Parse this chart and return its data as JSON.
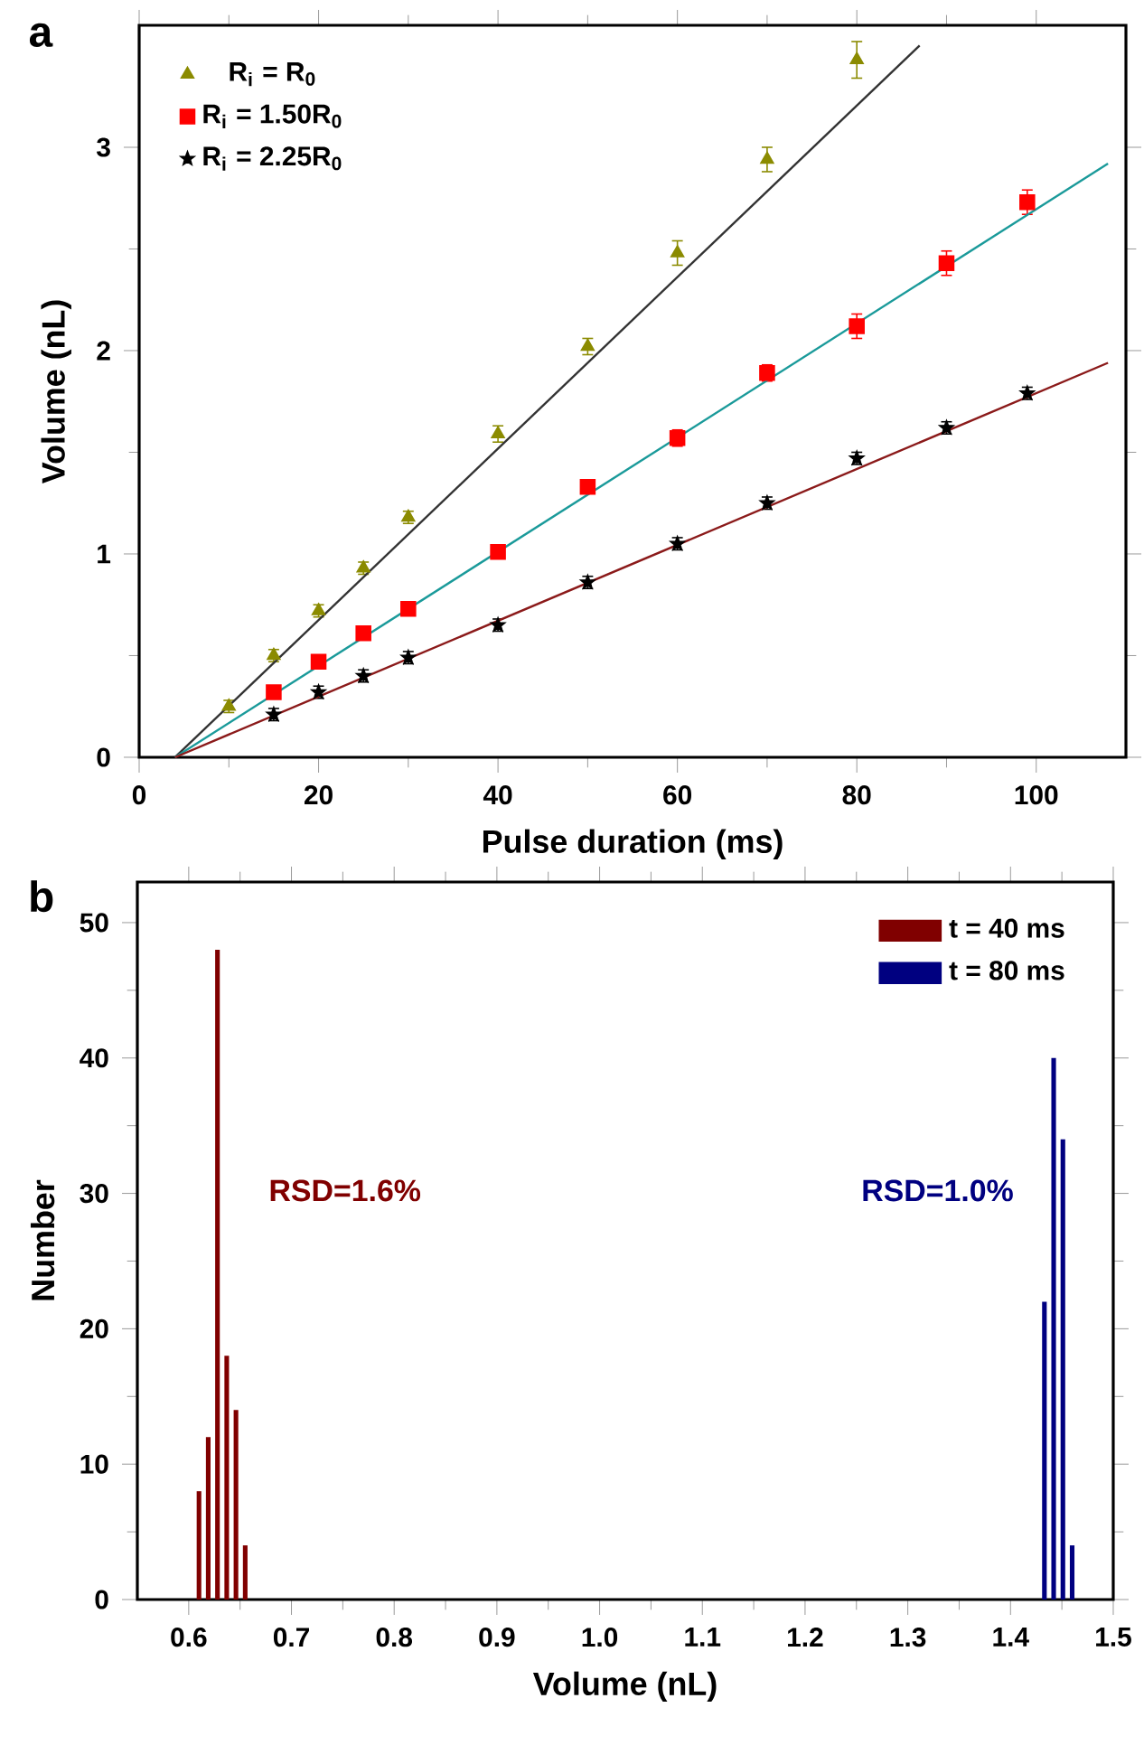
{
  "chart_data": [
    {
      "type": "scatter",
      "xlabel": "Pulse duration (ms)",
      "ylabel": "Volume (nL)",
      "xlim": [
        0,
        110
      ],
      "ylim": [
        0,
        3.6
      ],
      "xticks": [
        0,
        20,
        40,
        60,
        80,
        100
      ],
      "yticks": [
        0,
        1,
        2,
        3
      ],
      "legend": "top left",
      "grid": false,
      "annotations": [
        "a"
      ],
      "series": [
        {
          "name": "R$_{i}$ =   R$_{0}$",
          "color": "#8b8b00",
          "marker": "triangle",
          "x": [
            10,
            15,
            20,
            25,
            30,
            40,
            50,
            60,
            70,
            80
          ],
          "values": [
            0.25,
            0.5,
            0.72,
            0.93,
            1.18,
            1.59,
            2.02,
            2.48,
            2.94,
            3.43
          ],
          "errors": [
            0.03,
            0.03,
            0.03,
            0.03,
            0.03,
            0.04,
            0.04,
            0.06,
            0.06,
            0.09
          ]
        },
        {
          "name": "R$_{i}$ = 1.50R$_{0}$",
          "color": "#ff0000",
          "marker": "square",
          "x": [
            15,
            20,
            25,
            30,
            40,
            50,
            60,
            70,
            80,
            90,
            99
          ],
          "values": [
            0.32,
            0.47,
            0.61,
            0.73,
            1.01,
            1.33,
            1.57,
            1.89,
            2.12,
            2.43,
            2.73
          ],
          "errors": [
            0.02,
            0.02,
            0.02,
            0.02,
            0.02,
            0.03,
            0.04,
            0.04,
            0.06,
            0.06,
            0.06
          ]
        },
        {
          "name": "R$_{i}$ = 2.25R$_{0}$",
          "color": "#000000",
          "marker": "star",
          "x": [
            15,
            20,
            25,
            30,
            40,
            50,
            60,
            70,
            80,
            90,
            99
          ],
          "values": [
            0.21,
            0.32,
            0.4,
            0.49,
            0.65,
            0.86,
            1.05,
            1.25,
            1.47,
            1.62,
            1.79
          ],
          "errors": [
            0.03,
            0.03,
            0.03,
            0.03,
            0.03,
            0.03,
            0.03,
            0.03,
            0.03,
            0.03,
            0.03
          ]
        },
        {
          "type": "line",
          "color": "#333333",
          "x": [
            4,
            87
          ],
          "values": [
            0,
            3.5
          ]
        },
        {
          "type": "line",
          "color": "#1a9a9a",
          "x": [
            4,
            108
          ],
          "values": [
            0,
            2.92
          ]
        },
        {
          "type": "line",
          "color": "#8b1a1a",
          "x": [
            4,
            108
          ],
          "values": [
            0,
            1.94
          ]
        }
      ]
    },
    {
      "type": "bar",
      "xlabel": "Volume (nL)",
      "ylabel": "Number",
      "xlim": [
        0.55,
        1.5
      ],
      "ylim": [
        0,
        53
      ],
      "xticks": [
        0.6,
        0.7,
        0.8,
        0.9,
        {
          "value": 1.0,
          "label": "1.0"
        },
        1.1,
        1.2,
        1.3,
        1.4,
        1.5
      ],
      "yticks": [
        0,
        10,
        20,
        30,
        40,
        50
      ],
      "legend": "top right",
      "grid": false,
      "annotations": [
        "b",
        "RSD=1.6%",
        "RSD=1.0%"
      ],
      "series": [
        {
          "name": "t = 40 ms",
          "color": "#800000",
          "x": [
            0.61,
            0.619,
            0.628,
            0.637,
            0.646,
            0.655
          ],
          "values": [
            8,
            12,
            48,
            18,
            14,
            4
          ]
        },
        {
          "name": "t = 80 ms",
          "color": "#000080",
          "x": [
            1.433,
            1.442,
            1.451,
            1.46
          ],
          "values": [
            22,
            40,
            34,
            4
          ]
        }
      ]
    }
  ]
}
